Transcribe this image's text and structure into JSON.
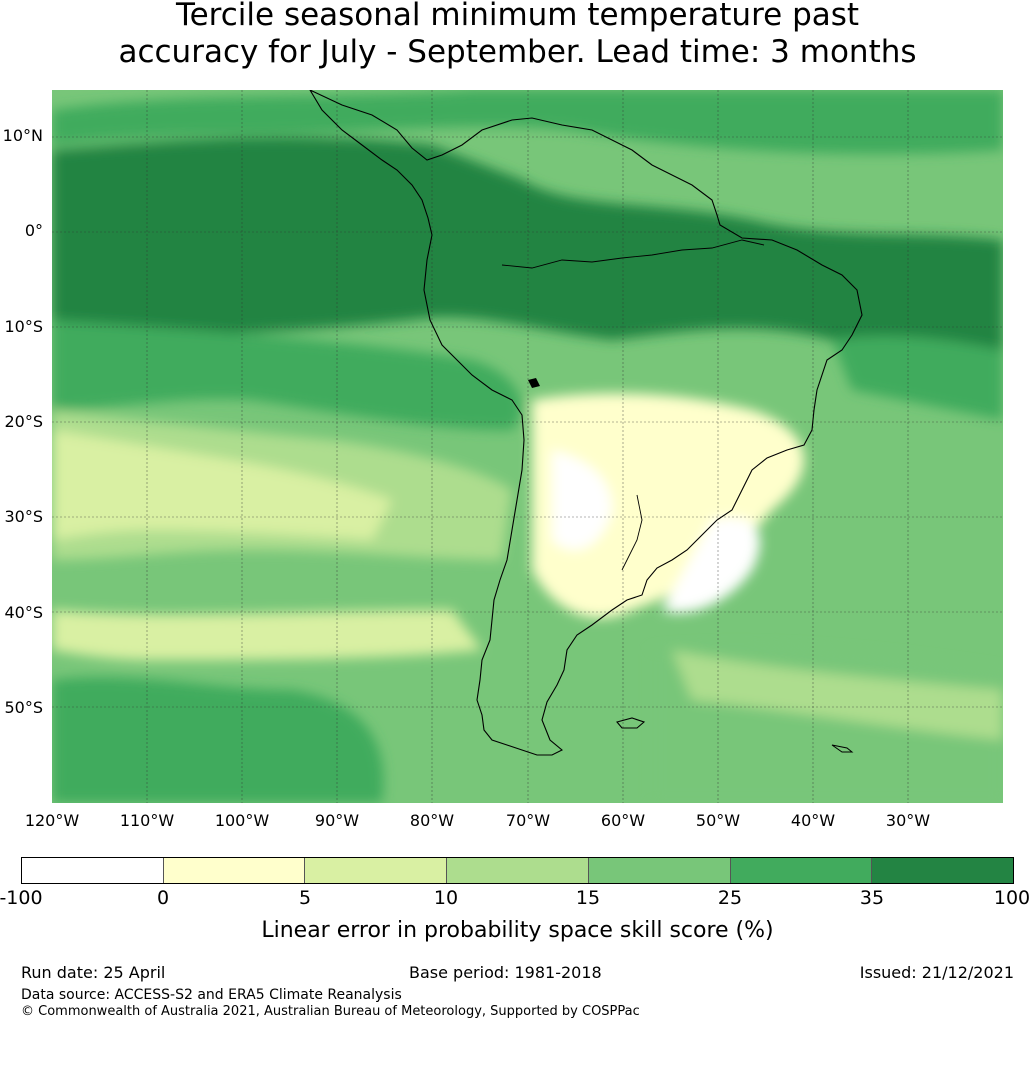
{
  "title_line1": "Tercile seasonal minimum temperature past",
  "title_line2": "accuracy for July - September. Lead time: 3 months",
  "map": {
    "lat_labels": [
      "10°N",
      "0°",
      "10°S",
      "20°S",
      "30°S",
      "40°S",
      "50°S"
    ],
    "lon_labels": [
      "120°W",
      "110°W",
      "100°W",
      "90°W",
      "80°W",
      "70°W",
      "60°W",
      "50°W",
      "40°W",
      "30°W"
    ],
    "extent": {
      "lon_min": -120,
      "lon_max": -20,
      "lat_min": -60,
      "lat_max": 15
    }
  },
  "colorbar": {
    "ticks": [
      "-100",
      "0",
      "5",
      "10",
      "15",
      "25",
      "35",
      "100"
    ],
    "colors": [
      "#ffffff",
      "#ffffcc",
      "#d9f0a3",
      "#addd8e",
      "#78c679",
      "#41ab5d",
      "#238443"
    ],
    "label": "Linear error in probability space skill score (%)"
  },
  "footer": {
    "run_date": "Run date: 25 April",
    "base_period": "Base period: 1981-2018",
    "issued": "Issued: 21/12/2021",
    "data_source": "Data source: ACCESS-S2 and ERA5 Climate Reanalysis",
    "copyright": "© Commonwealth of Australia 2021, Australian Bureau of Meteorology, Supported by COSPPac"
  }
}
